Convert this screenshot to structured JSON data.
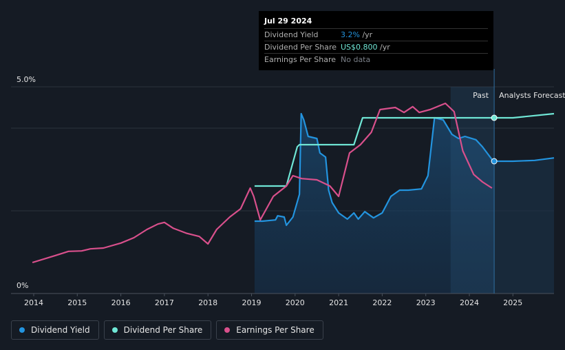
{
  "chart_data": {
    "type": "line",
    "x_ticks": [
      "2014",
      "2015",
      "2016",
      "2017",
      "2018",
      "2019",
      "2020",
      "2021",
      "2022",
      "2023",
      "2024",
      "2025"
    ],
    "y_ticks": [
      "0%",
      "5.0%"
    ],
    "ylim": [
      0,
      5.0
    ],
    "past_label": "Past",
    "forecast_label": "Analysts Forecasts",
    "series": [
      {
        "name": "Dividend Yield",
        "color": "#2394df",
        "points": [
          [
            2019.07,
            1.75
          ],
          [
            2019.25,
            1.75
          ],
          [
            2019.55,
            1.78
          ],
          [
            2019.6,
            1.88
          ],
          [
            2019.75,
            1.85
          ],
          [
            2019.8,
            1.65
          ],
          [
            2019.95,
            1.85
          ],
          [
            2020.1,
            2.4
          ],
          [
            2020.14,
            4.35
          ],
          [
            2020.2,
            4.2
          ],
          [
            2020.3,
            3.8
          ],
          [
            2020.5,
            3.75
          ],
          [
            2020.57,
            3.4
          ],
          [
            2020.7,
            3.3
          ],
          [
            2020.77,
            2.5
          ],
          [
            2020.85,
            2.2
          ],
          [
            2021.0,
            1.95
          ],
          [
            2021.2,
            1.8
          ],
          [
            2021.35,
            1.95
          ],
          [
            2021.45,
            1.8
          ],
          [
            2021.6,
            1.98
          ],
          [
            2021.8,
            1.83
          ],
          [
            2022.0,
            1.95
          ],
          [
            2022.2,
            2.35
          ],
          [
            2022.4,
            2.5
          ],
          [
            2022.6,
            2.5
          ],
          [
            2022.9,
            2.53
          ],
          [
            2023.05,
            2.85
          ],
          [
            2023.2,
            4.25
          ],
          [
            2023.4,
            4.2
          ],
          [
            2023.6,
            3.85
          ],
          [
            2023.75,
            3.75
          ],
          [
            2023.9,
            3.8
          ],
          [
            2024.15,
            3.72
          ],
          [
            2024.3,
            3.55
          ],
          [
            2024.55,
            3.2
          ],
          [
            2025.0,
            3.2
          ],
          [
            2025.5,
            3.22
          ],
          [
            2026.0,
            3.28
          ]
        ]
      },
      {
        "name": "Dividend Per Share",
        "color": "#70e7d6",
        "points": [
          [
            2019.07,
            2.6
          ],
          [
            2019.8,
            2.6
          ],
          [
            2020.05,
            3.55
          ],
          [
            2020.1,
            3.6
          ],
          [
            2021.35,
            3.6
          ],
          [
            2021.55,
            4.25
          ],
          [
            2024.55,
            4.25
          ],
          [
            2025.0,
            4.25
          ],
          [
            2026.0,
            4.35
          ]
        ]
      },
      {
        "name": "Earnings Per Share",
        "color": "#d9508c",
        "points": [
          [
            2013.97,
            0.75
          ],
          [
            2014.5,
            0.92
          ],
          [
            2014.8,
            1.02
          ],
          [
            2015.1,
            1.03
          ],
          [
            2015.3,
            1.08
          ],
          [
            2015.6,
            1.1
          ],
          [
            2016.0,
            1.22
          ],
          [
            2016.3,
            1.35
          ],
          [
            2016.6,
            1.55
          ],
          [
            2016.85,
            1.68
          ],
          [
            2017.0,
            1.72
          ],
          [
            2017.2,
            1.58
          ],
          [
            2017.5,
            1.46
          ],
          [
            2017.8,
            1.38
          ],
          [
            2018.0,
            1.2
          ],
          [
            2018.2,
            1.55
          ],
          [
            2018.5,
            1.85
          ],
          [
            2018.75,
            2.05
          ],
          [
            2018.97,
            2.55
          ],
          [
            2019.05,
            2.35
          ],
          [
            2019.2,
            1.78
          ],
          [
            2019.5,
            2.35
          ],
          [
            2019.8,
            2.6
          ],
          [
            2019.95,
            2.85
          ],
          [
            2020.15,
            2.78
          ],
          [
            2020.5,
            2.75
          ],
          [
            2020.8,
            2.6
          ],
          [
            2021.0,
            2.35
          ],
          [
            2021.25,
            3.4
          ],
          [
            2021.5,
            3.6
          ],
          [
            2021.75,
            3.9
          ],
          [
            2021.95,
            4.45
          ],
          [
            2022.3,
            4.5
          ],
          [
            2022.5,
            4.38
          ],
          [
            2022.7,
            4.52
          ],
          [
            2022.85,
            4.38
          ],
          [
            2023.1,
            4.45
          ],
          [
            2023.45,
            4.6
          ],
          [
            2023.65,
            4.4
          ],
          [
            2023.85,
            3.45
          ],
          [
            2024.1,
            2.88
          ],
          [
            2024.3,
            2.7
          ],
          [
            2024.52,
            2.55
          ]
        ]
      }
    ],
    "marker_x": 2024.57,
    "tooltip": {
      "date": "Jul 29 2024",
      "rows": [
        {
          "label": "Dividend Yield",
          "value": "3.2%",
          "unit": " /yr",
          "color": "#2394df"
        },
        {
          "label": "Dividend Per Share",
          "value": "US$0.800",
          "unit": " /yr",
          "color": "#70e7d6"
        },
        {
          "label": "Earnings Per Share",
          "value": "No data",
          "unit": "",
          "color": "#7a7f87"
        }
      ]
    }
  },
  "legend": [
    {
      "label": "Dividend Yield",
      "color": "#2394df"
    },
    {
      "label": "Dividend Per Share",
      "color": "#70e7d6"
    },
    {
      "label": "Earnings Per Share",
      "color": "#d9508c"
    }
  ]
}
